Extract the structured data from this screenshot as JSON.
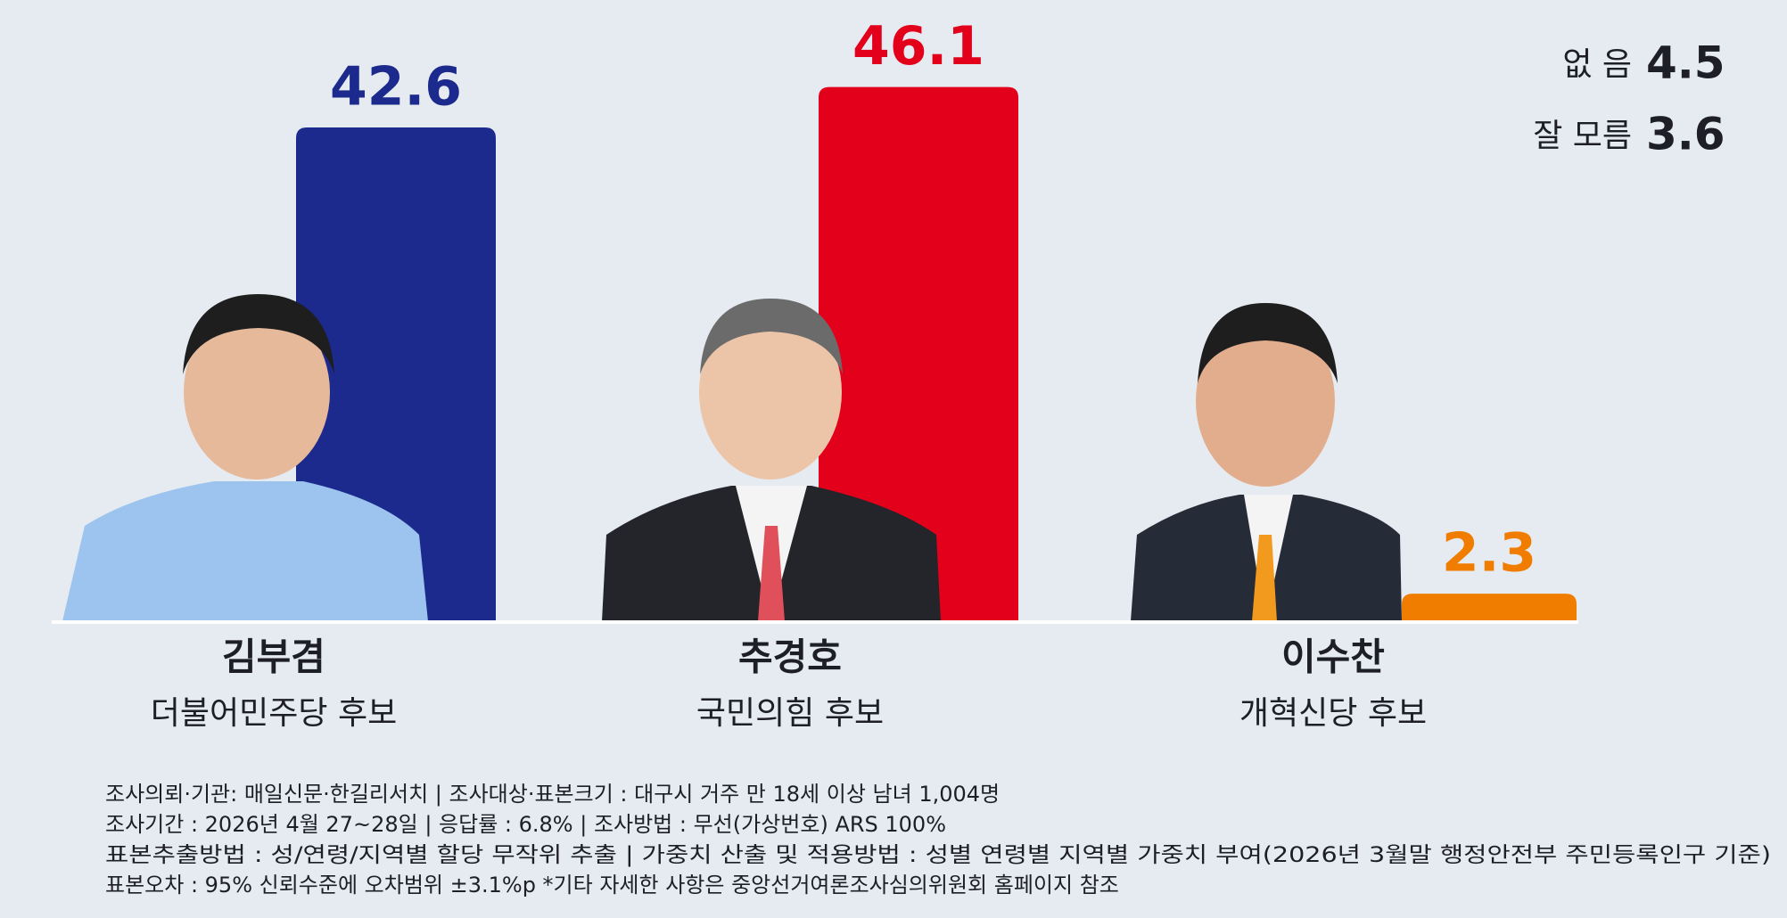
{
  "chart_data": {
    "type": "bar",
    "categories": [
      "김부겸",
      "추경호",
      "이수찬"
    ],
    "category_subtitles": [
      "더불어민주당 후보",
      "국민의힘 후보",
      "개혁신당 후보"
    ],
    "values": [
      42.6,
      46.1,
      2.3
    ],
    "colors": [
      "#1b2a8c",
      "#e3001b",
      "#f07d00"
    ],
    "others": [
      {
        "label": "없 음",
        "value": 4.5
      },
      {
        "label": "잘 모름",
        "value": 3.6
      }
    ],
    "notes": [
      "조사의뢰·기관: 매일신문·한길리서치 | 조사대상·표본크기 : 대구시 거주 만 18세 이상 남녀 1,004명",
      "조사기간 : 2026년 4월 27~28일 | 응답률 : 6.8% | 조사방법 : 무선(가상번호) ARS 100%",
      "표본추출방법 : 성/연령/지역별 할당 무작위 추출 | 가중치 산출 및 적용방법 : 성별 연령별 지역별 가중치 부여(2026년 3월말 행정안전부 주민등록인구 기준)",
      "표본오차 : 95% 신뢰수준에 오차범위 ±3.1%p *기타 자세한 사항은 중앙선거여론조사심의위원회 홈페이지 참조"
    ]
  }
}
